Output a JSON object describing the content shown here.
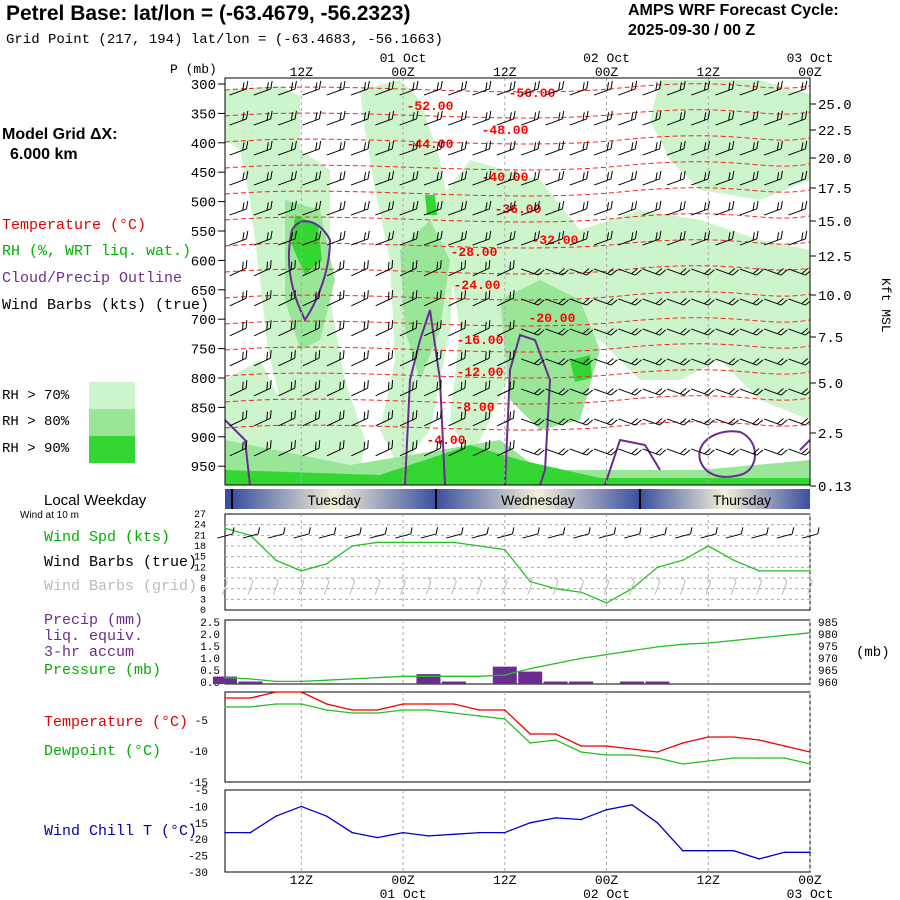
{
  "header": {
    "title": "Petrel Base:  lat/lon = (-63.4679, -56.2323)",
    "subtitle": "Grid Point (217, 194) lat/lon = (-63.4683, -56.1663)",
    "cycle_label": "AMPS WRF Forecast Cycle:",
    "cycle_value": "2025-09-30 / 00  Z"
  },
  "model_grid": {
    "label": "Model Grid ΔX:",
    "value": "6.000 km"
  },
  "legend": {
    "temperature": "Temperature (°C)",
    "rh": "RH (%, WRT liq. wat.)",
    "cloud": "Cloud/Precip Outline",
    "wind_barbs": "Wind Barbs (kts) (true)",
    "rh_thresholds": [
      {
        "label": "RH > 70%",
        "color": "#ccf5cc"
      },
      {
        "label": "RH > 80%",
        "color": "#99e699"
      },
      {
        "label": "RH > 90%",
        "color": "#33d633"
      }
    ]
  },
  "colors": {
    "temp": "#ff0000",
    "rh_green": "#00cc00",
    "cloud": "#6a2c91",
    "windchill": "#0000cc",
    "grid": "#999999",
    "dewpoint": "#00cc00",
    "precip_bar": "#6a2c91"
  },
  "time_axis": {
    "top_dates": [
      "01 Oct",
      "02 Oct",
      "03 Oct"
    ],
    "hours": [
      "12Z",
      "00Z",
      "12Z",
      "00Z",
      "12Z",
      "00Z"
    ],
    "hour_values": [
      12,
      24,
      36,
      48,
      60,
      72
    ],
    "date_values": [
      24,
      48,
      72
    ],
    "start_hour": 3,
    "end_hour": 72
  },
  "upper_panel": {
    "y_label": "P (mb)",
    "pressure_levels": [
      "300",
      "350",
      "400",
      "450",
      "500",
      "550",
      "600",
      "650",
      "700",
      "750",
      "800",
      "850",
      "900",
      "950"
    ],
    "kft_label": "Kft MSL",
    "kft_levels": [
      "25.0",
      "22.5",
      "20.0",
      "17.5",
      "15.0",
      "12.5",
      "10.0",
      "7.5",
      "5.0",
      "2.5",
      "0.13"
    ],
    "isotherms": [
      "-56.00",
      "-52.00",
      "-48.00",
      "-44.00",
      "-40.00",
      "-36.00",
      "-32.00",
      "-28.00",
      "-24.00",
      "-20.00",
      "-16.00",
      "-12.00",
      "-8.00",
      "-4.00"
    ]
  },
  "weekday_bar": {
    "label": "Local Weekday",
    "days": [
      "Tuesday",
      "Wednesday",
      "Thursday"
    ]
  },
  "wind_panel": {
    "sublabel": "Wind at 10 m",
    "speed_label": "Wind Spd (kts)",
    "barbs_true_label": "Wind Barbs (true)",
    "barbs_grid_label": "Wind Barbs (grid)",
    "y_ticks": [
      "27",
      "24",
      "21",
      "18",
      "15",
      "12",
      "9",
      "6",
      "3",
      "0"
    ]
  },
  "precip_panel": {
    "label1": "Precip (mm)",
    "label2": "liq. equiv.",
    "label3": "3-hr accum",
    "label4": "Pressure (mb)",
    "left_ticks": [
      "2.5",
      "2.0",
      "1.5",
      "1.0",
      "0.5",
      "0.0"
    ],
    "right_ticks": [
      "985",
      "980",
      "975",
      "970",
      "965",
      "960"
    ],
    "right_unit": "(mb)"
  },
  "temp_panel": {
    "temp_label": "Temperature (°C)",
    "dew_label": "Dewpoint (°C)",
    "y_ticks": [
      "-5",
      "-10",
      "-15"
    ]
  },
  "chill_panel": {
    "label": "Wind Chill T (°C)",
    "y_ticks": [
      "-5",
      "-10",
      "-15",
      "-20",
      "-25",
      "-30"
    ]
  },
  "chart_data": [
    {
      "type": "line",
      "title": "10 m Wind Speed",
      "ylabel": "Wind Spd (kts)",
      "x": [
        3,
        6,
        9,
        12,
        15,
        18,
        21,
        24,
        27,
        30,
        33,
        36,
        39,
        42,
        45,
        48,
        51,
        54,
        57,
        60,
        63,
        66,
        69,
        72
      ],
      "series": [
        {
          "name": "Wind Spd (kts)",
          "values": [
            23,
            21,
            14,
            11,
            13,
            18,
            19,
            19,
            19,
            19,
            18,
            17,
            8,
            6,
            5,
            2,
            6,
            12,
            14,
            18,
            14,
            11,
            11,
            11
          ]
        }
      ],
      "ylim": [
        0,
        27
      ]
    },
    {
      "type": "bar",
      "title": "Precip (3-hr accum, mm liq. equiv.)",
      "x": [
        3,
        6,
        9,
        12,
        15,
        18,
        21,
        24,
        27,
        30,
        33,
        36,
        39,
        42,
        45,
        48,
        51,
        54,
        57,
        60,
        63,
        66,
        69,
        72
      ],
      "values": [
        0.3,
        0.1,
        0,
        0,
        0,
        0,
        0,
        0,
        0.4,
        0.1,
        0,
        0.7,
        0.5,
        0.1,
        0.1,
        0,
        0.1,
        0.1,
        0,
        0,
        0,
        0,
        0,
        0
      ],
      "ylim": [
        0,
        2.5
      ]
    },
    {
      "type": "line",
      "title": "Pressure (mb)",
      "x": [
        3,
        6,
        9,
        12,
        15,
        18,
        21,
        24,
        27,
        30,
        33,
        36,
        39,
        42,
        45,
        48,
        51,
        54,
        57,
        60,
        63,
        66,
        69,
        72
      ],
      "series": [
        {
          "name": "Pressure (mb)",
          "values": [
            962.5,
            962,
            961,
            961,
            961.5,
            962,
            962.5,
            963,
            963,
            963,
            963,
            963.5,
            966,
            968,
            970,
            971.5,
            973,
            974.5,
            975.5,
            976,
            977,
            978,
            979,
            980
          ]
        }
      ],
      "ylim": [
        960,
        985
      ]
    },
    {
      "type": "line",
      "title": "Temperature and Dewpoint",
      "x": [
        3,
        6,
        9,
        12,
        15,
        18,
        21,
        24,
        27,
        30,
        33,
        36,
        39,
        42,
        45,
        48,
        51,
        54,
        57,
        60,
        63,
        66,
        69,
        72
      ],
      "series": [
        {
          "name": "Temperature (°C)",
          "values": [
            -1,
            -1,
            0,
            0,
            -2,
            -3,
            -3,
            -2,
            -2,
            -2,
            -3,
            -3,
            -7,
            -7,
            -9,
            -9,
            -9.5,
            -10,
            -8.5,
            -7.5,
            -7.5,
            -8,
            -9,
            -10
          ]
        },
        {
          "name": "Dewpoint (°C)",
          "values": [
            -2.5,
            -2.5,
            -2,
            -2,
            -3,
            -3.5,
            -3.5,
            -3,
            -3,
            -3.5,
            -4,
            -4.5,
            -8.5,
            -8,
            -10,
            -10.5,
            -10.5,
            -11,
            -12,
            -11.5,
            -11,
            -11,
            -11,
            -12
          ]
        }
      ],
      "ylim": [
        -15,
        0
      ]
    },
    {
      "type": "line",
      "title": "Wind Chill",
      "x": [
        3,
        6,
        9,
        12,
        15,
        18,
        21,
        24,
        27,
        30,
        33,
        36,
        39,
        42,
        45,
        48,
        51,
        54,
        57,
        60,
        63,
        66,
        69,
        72
      ],
      "series": [
        {
          "name": "Wind Chill T (°C)",
          "values": [
            -18,
            -18,
            -13,
            -10,
            -13,
            -18,
            -19.5,
            -18,
            -19,
            -18.5,
            -18,
            -18,
            -15,
            -13.5,
            -14,
            -11,
            -9.5,
            -15,
            -23.5,
            -23.5,
            -23.5,
            -26,
            -24,
            -24
          ]
        }
      ],
      "ylim": [
        -30,
        -5
      ]
    }
  ]
}
